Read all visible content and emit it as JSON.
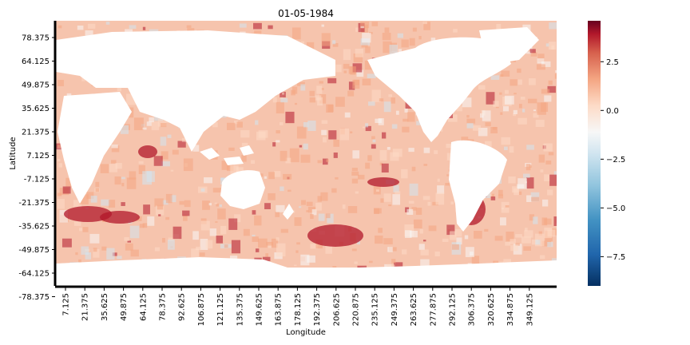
{
  "chart_data": {
    "type": "heatmap",
    "title": "01-05-1984",
    "xlabel": "Longitude",
    "ylabel": "Latitude",
    "x_ticks": [
      "7.125",
      "21.375",
      "35.625",
      "49.875",
      "64.125",
      "78.375",
      "92.625",
      "106.875",
      "121.125",
      "135.375",
      "149.625",
      "163.875",
      "178.125",
      "192.375",
      "206.625",
      "220.875",
      "235.125",
      "249.375",
      "263.625",
      "277.875",
      "292.125",
      "306.375",
      "320.625",
      "334.875",
      "349.125"
    ],
    "y_ticks": [
      "78.375",
      "64.125",
      "49.875",
      "35.625",
      "21.375",
      "7.125",
      "-7.125",
      "-21.375",
      "-35.625",
      "-49.875",
      "-64.125",
      "-78.375"
    ],
    "xlim": [
      0,
      360
    ],
    "ylim": [
      -90,
      90
    ],
    "colorbar": {
      "colormap": "RdBu_r",
      "vmin": -9.0,
      "vmax": 4.6,
      "ticks": [
        "2.5",
        "0.0",
        "−2.5",
        "−5.0",
        "−7.5"
      ],
      "tick_values": [
        2.5,
        0.0,
        -2.5,
        -5.0,
        -7.5
      ]
    },
    "colors": {
      "dark_red": "#67001f",
      "red": "#b2182b",
      "salmon": "#f4a582",
      "light_salmon": "#fddbc7",
      "white": "#f7f7f7",
      "light_blue": "#d1e5f0",
      "blue": "#4393c3",
      "dark_blue": "#053061"
    },
    "landmask": "white",
    "grid": false
  }
}
